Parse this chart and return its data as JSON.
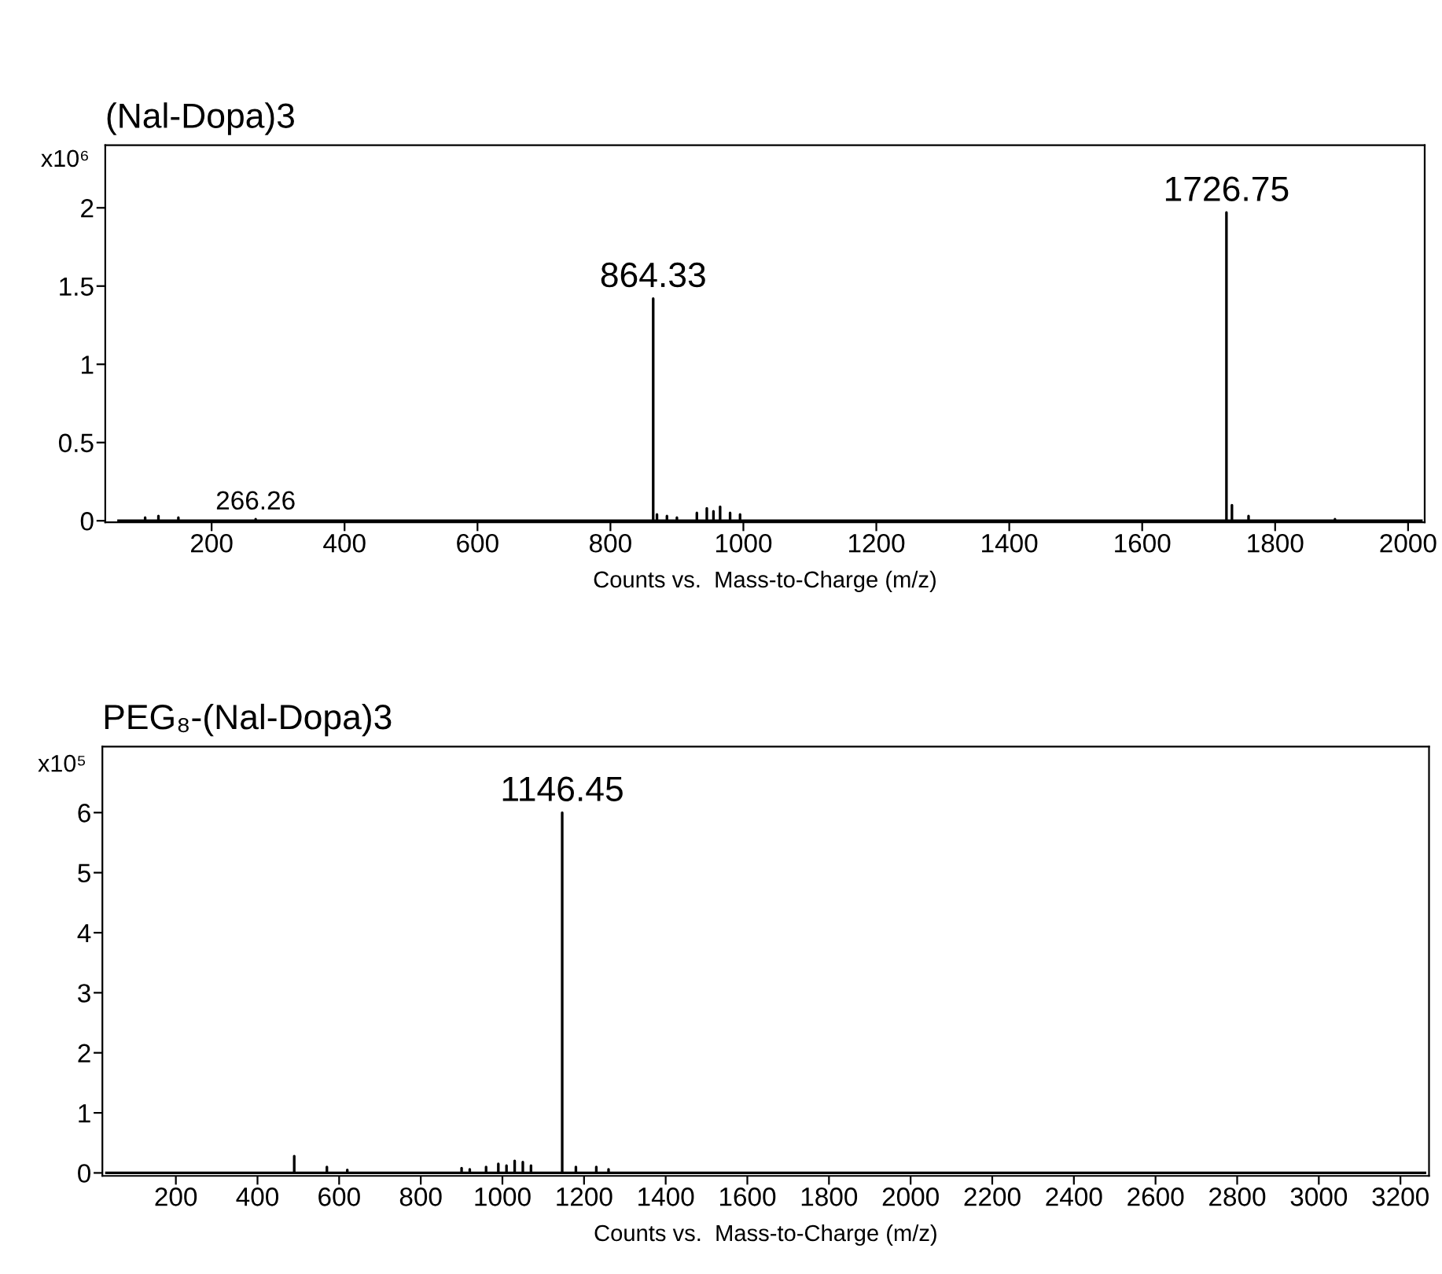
{
  "chart_data": [
    {
      "type": "line",
      "title": "(Nal-Dopa)3",
      "xlabel": "Counts vs.  Mass-to-Charge (m/z)",
      "ylabel": "x10⁶",
      "series": [
        {
          "color": "#000000",
          "x": [
            60,
            100,
            100,
            100,
            120,
            120,
            120,
            150,
            150,
            150,
            266.26,
            266.26,
            266.26,
            864.33,
            864.33,
            864.33,
            870,
            870,
            870,
            885,
            885,
            885,
            900,
            900,
            900,
            930,
            930,
            930,
            945,
            945,
            945,
            955,
            955,
            955,
            965,
            965,
            965,
            980,
            980,
            980,
            995,
            995,
            995,
            1726.75,
            1726.75,
            1726.75,
            1735,
            1735,
            1735,
            1760,
            1760,
            1760,
            1890,
            1890,
            1890,
            2020
          ],
          "values": [
            0,
            0,
            0.02,
            0,
            0,
            0.03,
            0,
            0,
            0.02,
            0,
            0,
            0.01,
            0,
            0,
            1.42,
            0,
            0,
            0.04,
            0,
            0,
            0.03,
            0,
            0,
            0.02,
            0,
            0,
            0.05,
            0,
            0,
            0.08,
            0,
            0,
            0.06,
            0,
            0,
            0.09,
            0,
            0,
            0.05,
            0,
            0,
            0.04,
            0,
            0,
            1.97,
            0,
            0,
            0.1,
            0,
            0,
            0.03,
            0,
            0,
            0.01,
            0,
            0
          ]
        }
      ],
      "xlim": [
        40,
        2025
      ],
      "xticks": [
        200,
        400,
        600,
        800,
        1000,
        1200,
        1400,
        1600,
        1800,
        2000
      ],
      "ylim": [
        -0.01,
        2.4
      ],
      "yticks": [
        0,
        0.5,
        1,
        1.5,
        2
      ],
      "annotations": [
        {
          "text": "266.26",
          "x": 266.26,
          "y": 0.01
        },
        {
          "text": "864.33",
          "x": 864.33,
          "y": 1.42
        },
        {
          "text": "1726.75",
          "x": 1726.75,
          "y": 1.97
        }
      ]
    },
    {
      "type": "line",
      "title": "PEG₈-(Nal-Dopa)3",
      "xlabel": "Counts vs.  Mass-to-Charge (m/z)",
      "ylabel": "x10⁵",
      "series": [
        {
          "color": "#000000",
          "x": [
            30,
            490,
            490,
            490,
            570,
            570,
            570,
            620,
            620,
            620,
            900,
            900,
            900,
            920,
            920,
            920,
            960,
            960,
            960,
            990,
            990,
            990,
            1010,
            1010,
            1010,
            1030,
            1030,
            1030,
            1050,
            1050,
            1050,
            1070,
            1070,
            1070,
            1146.45,
            1146.45,
            1146.45,
            1180,
            1180,
            1180,
            1230,
            1230,
            1230,
            1260,
            1260,
            1260,
            3260
          ],
          "values": [
            0,
            0,
            0.28,
            0,
            0,
            0.1,
            0,
            0,
            0.05,
            0,
            0,
            0.08,
            0,
            0,
            0.06,
            0,
            0,
            0.1,
            0,
            0,
            0.15,
            0,
            0,
            0.12,
            0,
            0,
            0.2,
            0,
            0,
            0.18,
            0,
            0,
            0.12,
            0,
            0,
            6.0,
            0,
            0,
            0.1,
            0,
            0,
            0.1,
            0,
            0,
            0.06,
            0,
            0
          ]
        }
      ],
      "xlim": [
        20,
        3270
      ],
      "xticks": [
        200,
        400,
        600,
        800,
        1000,
        1200,
        1400,
        1600,
        1800,
        2000,
        2200,
        2400,
        2600,
        2800,
        3000,
        3200
      ],
      "ylim": [
        -0.05,
        7.1
      ],
      "yticks": [
        0,
        1,
        2,
        3,
        4,
        5,
        6
      ],
      "annotations": [
        {
          "text": "1146.45",
          "x": 1146.45,
          "y": 6.0
        }
      ]
    }
  ]
}
